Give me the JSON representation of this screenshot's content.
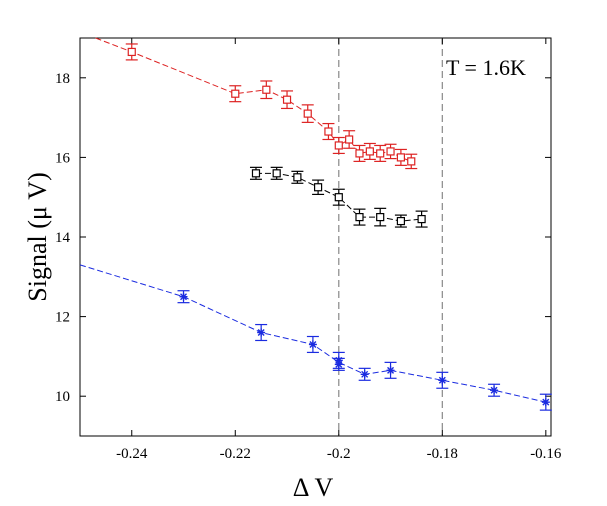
{
  "chart_data": {
    "type": "scatter",
    "title": "",
    "xlabel": "Δ V",
    "ylabel": "Signal (μ V)",
    "xlim": [
      -0.25,
      -0.159
    ],
    "ylim": [
      9.0,
      19.0
    ],
    "grid": false,
    "legend": "none",
    "x_ticks": [
      -0.24,
      -0.22,
      -0.2,
      -0.18,
      -0.16
    ],
    "x_tick_labels": [
      "-0.24",
      "-0.22",
      "-0.2",
      "-0.18",
      "-0.16"
    ],
    "y_ticks": [
      10,
      12,
      14,
      16,
      18
    ],
    "y_tick_labels": [
      "10",
      "12",
      "14",
      "16",
      "18"
    ],
    "annotation": "T = 1.6K",
    "vertical_lines": [
      -0.2,
      -0.18
    ],
    "series": [
      {
        "name": "red",
        "color": "#dd2222",
        "marker": "square",
        "x": [
          -0.24,
          -0.22,
          -0.214,
          -0.21,
          -0.206,
          -0.202,
          -0.2,
          -0.198,
          -0.196,
          -0.194,
          -0.192,
          -0.19,
          -0.188,
          -0.186
        ],
        "y": [
          18.65,
          17.6,
          17.7,
          17.45,
          17.1,
          16.65,
          16.3,
          16.45,
          16.1,
          16.15,
          16.1,
          16.15,
          16.0,
          15.9
        ],
        "err": [
          0.2,
          0.2,
          0.22,
          0.22,
          0.22,
          0.2,
          0.2,
          0.22,
          0.2,
          0.2,
          0.2,
          0.18,
          0.2,
          0.18
        ],
        "fit_x": [
          -0.247,
          -0.24,
          -0.22,
          -0.214,
          -0.21,
          -0.206,
          -0.202,
          -0.2,
          -0.198,
          -0.196,
          -0.194,
          -0.192,
          -0.19,
          -0.188,
          -0.186
        ],
        "fit_y": [
          19.0,
          18.65,
          17.6,
          17.7,
          17.45,
          17.1,
          16.65,
          16.3,
          16.45,
          16.1,
          16.15,
          16.1,
          16.15,
          16.0,
          15.9
        ]
      },
      {
        "name": "black",
        "color": "#000000",
        "marker": "square",
        "x": [
          -0.216,
          -0.212,
          -0.208,
          -0.204,
          -0.2,
          -0.196,
          -0.192,
          -0.188,
          -0.184
        ],
        "y": [
          15.6,
          15.6,
          15.5,
          15.25,
          15.0,
          14.5,
          14.5,
          14.4,
          14.45
        ],
        "err": [
          0.15,
          0.15,
          0.15,
          0.18,
          0.2,
          0.2,
          0.22,
          0.15,
          0.2
        ],
        "fit_x": [
          -0.216,
          -0.212,
          -0.208,
          -0.204,
          -0.2,
          -0.196,
          -0.192,
          -0.188,
          -0.184
        ],
        "fit_y": [
          15.6,
          15.6,
          15.5,
          15.25,
          15.0,
          14.5,
          14.5,
          14.4,
          14.45
        ]
      },
      {
        "name": "blue",
        "color": "#1a2be0",
        "marker": "star",
        "x": [
          -0.23,
          -0.215,
          -0.205,
          -0.2,
          -0.2,
          -0.195,
          -0.19,
          -0.18,
          -0.17,
          -0.16
        ],
        "y": [
          12.5,
          11.6,
          11.3,
          10.9,
          10.8,
          10.55,
          10.65,
          10.4,
          10.15,
          9.85
        ],
        "err": [
          0.15,
          0.2,
          0.2,
          0.2,
          0.15,
          0.15,
          0.2,
          0.2,
          0.15,
          0.2
        ],
        "fit_x": [
          -0.25,
          -0.23,
          -0.215,
          -0.205,
          -0.2,
          -0.195,
          -0.19,
          -0.18,
          -0.17,
          -0.16
        ],
        "fit_y": [
          13.3,
          12.5,
          11.6,
          11.3,
          10.85,
          10.55,
          10.65,
          10.4,
          10.15,
          9.85
        ]
      }
    ]
  }
}
